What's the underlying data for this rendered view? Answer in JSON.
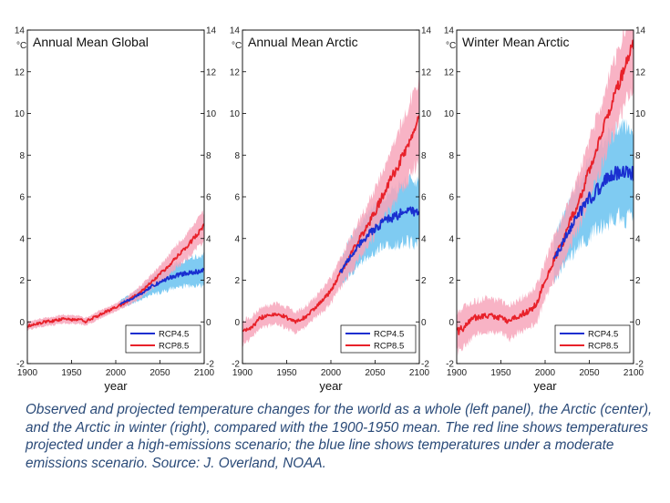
{
  "caption": "Observed and projected temperature changes for the world as a whole (left panel), the Arctic (center), and the Arctic in winter (right), compared with the 1900-1950 mean. The red line shows temperatures projected under a high-emissions scenario; the blue line shows temperatures under a moderate emissions scenario. Source: J. Overland, NOAA.",
  "colors": {
    "rcp85_line": "#e8212a",
    "rcp85_band": "#f7a6bb",
    "rcp45_line": "#1a2fd0",
    "rcp45_band": "#7fcbf2"
  },
  "chart_data": [
    {
      "type": "line",
      "title": "Annual Mean Global",
      "unit_label": "°C",
      "xlabel": "year",
      "xlim": [
        1900,
        2100
      ],
      "ylim": [
        -2,
        14
      ],
      "x_ticks": [
        "1900",
        "1950",
        "2000",
        "2050",
        "2100"
      ],
      "y_ticks": [
        "-2",
        "0",
        "2",
        "4",
        "6",
        "8",
        "10",
        "12",
        "14"
      ],
      "legend": {
        "position": "bottom-right",
        "entries": [
          "RCP4.5",
          "RCP8.5"
        ]
      },
      "series": [
        {
          "name": "RCP8.5",
          "x": [
            1900,
            1910,
            1920,
            1930,
            1940,
            1950,
            1960,
            1965,
            1970,
            1980,
            1990,
            2000,
            2010,
            2020,
            2030,
            2040,
            2050,
            2060,
            2070,
            2080,
            2090,
            2100
          ],
          "y": [
            -0.2,
            -0.1,
            0.0,
            0.05,
            0.15,
            0.1,
            0.1,
            0.0,
            0.1,
            0.3,
            0.5,
            0.7,
            0.9,
            1.2,
            1.5,
            1.9,
            2.3,
            2.7,
            3.2,
            3.6,
            4.1,
            4.6
          ],
          "band_halfwidth": [
            0.2,
            0.2,
            0.2,
            0.2,
            0.2,
            0.2,
            0.2,
            0.2,
            0.2,
            0.2,
            0.2,
            0.2,
            0.2,
            0.25,
            0.3,
            0.35,
            0.4,
            0.5,
            0.55,
            0.6,
            0.65,
            0.7
          ]
        },
        {
          "name": "RCP4.5",
          "x": [
            2005,
            2020,
            2030,
            2040,
            2050,
            2060,
            2070,
            2080,
            2090,
            2100
          ],
          "y": [
            0.85,
            1.15,
            1.4,
            1.7,
            1.9,
            2.1,
            2.25,
            2.35,
            2.4,
            2.5
          ],
          "band_halfwidth": [
            0.2,
            0.25,
            0.3,
            0.4,
            0.5,
            0.55,
            0.6,
            0.65,
            0.7,
            0.7
          ]
        }
      ]
    },
    {
      "type": "line",
      "title": "Annual Mean Arctic",
      "unit_label": "°C",
      "xlabel": "year",
      "xlim": [
        1900,
        2100
      ],
      "ylim": [
        -2,
        14
      ],
      "x_ticks": [
        "1900",
        "1950",
        "2000",
        "2050",
        "2100"
      ],
      "y_ticks": [
        "-2",
        "0",
        "2",
        "4",
        "6",
        "8",
        "10",
        "12",
        "14"
      ],
      "legend": {
        "position": "bottom-right",
        "entries": [
          "RCP4.5",
          "RCP8.5"
        ]
      },
      "series": [
        {
          "name": "RCP8.5",
          "x": [
            1900,
            1910,
            1920,
            1930,
            1940,
            1950,
            1960,
            1970,
            1980,
            1990,
            2000,
            2010,
            2020,
            2030,
            2040,
            2050,
            2060,
            2070,
            2080,
            2090,
            2100
          ],
          "y": [
            -0.5,
            -0.3,
            0.2,
            0.3,
            0.4,
            0.2,
            0.0,
            0.2,
            0.6,
            1.0,
            1.5,
            2.3,
            3.0,
            3.8,
            4.5,
            5.3,
            6.2,
            7.0,
            7.9,
            8.8,
            9.8
          ],
          "band_halfwidth": [
            0.6,
            0.5,
            0.5,
            0.5,
            0.5,
            0.5,
            0.5,
            0.5,
            0.5,
            0.55,
            0.6,
            0.7,
            0.8,
            0.9,
            1.0,
            1.1,
            1.2,
            1.4,
            1.6,
            1.8,
            2.0
          ]
        },
        {
          "name": "RCP4.5",
          "x": [
            2010,
            2020,
            2030,
            2040,
            2050,
            2060,
            2070,
            2080,
            2090,
            2100
          ],
          "y": [
            2.3,
            3.0,
            3.6,
            4.1,
            4.5,
            4.8,
            5.0,
            5.2,
            5.3,
            5.3
          ],
          "band_halfwidth": [
            0.6,
            0.8,
            0.9,
            1.0,
            1.1,
            1.2,
            1.3,
            1.4,
            1.5,
            1.5
          ]
        }
      ]
    },
    {
      "type": "line",
      "title": "Winter Mean Arctic",
      "unit_label": "°C",
      "xlabel": "year",
      "xlim": [
        1900,
        2100
      ],
      "ylim": [
        -2,
        14
      ],
      "x_ticks": [
        "1900",
        "1950",
        "2000",
        "2050",
        "2100"
      ],
      "y_ticks": [
        "-2",
        "0",
        "2",
        "4",
        "6",
        "8",
        "10",
        "12",
        "14"
      ],
      "legend": {
        "position": "bottom-right",
        "entries": [
          "RCP4.5",
          "RCP8.5"
        ]
      },
      "series": [
        {
          "name": "RCP8.5",
          "x": [
            1900,
            1910,
            1920,
            1930,
            1940,
            1950,
            1960,
            1970,
            1980,
            1990,
            2000,
            2010,
            2020,
            2030,
            2040,
            2050,
            2060,
            2070,
            2080,
            2090,
            2100
          ],
          "y": [
            -0.5,
            -0.2,
            0.2,
            0.3,
            0.3,
            0.2,
            0.0,
            0.3,
            0.5,
            0.8,
            2.0,
            3.0,
            3.8,
            5.0,
            6.0,
            7.3,
            8.5,
            9.8,
            11.0,
            12.2,
            13.3
          ],
          "band_halfwidth": [
            1.0,
            0.9,
            0.8,
            0.8,
            0.8,
            0.8,
            0.8,
            0.8,
            0.8,
            0.85,
            0.9,
            1.0,
            1.1,
            1.2,
            1.3,
            1.4,
            1.5,
            1.6,
            1.7,
            1.8,
            1.9
          ]
        },
        {
          "name": "RCP4.5",
          "x": [
            2010,
            2020,
            2030,
            2040,
            2050,
            2060,
            2070,
            2080,
            2090,
            2100
          ],
          "y": [
            3.0,
            3.8,
            4.6,
            5.3,
            5.9,
            6.4,
            6.8,
            7.1,
            7.2,
            7.1
          ],
          "band_halfwidth": [
            1.0,
            1.2,
            1.4,
            1.6,
            1.8,
            1.9,
            2.0,
            2.1,
            2.2,
            2.2
          ]
        }
      ]
    }
  ]
}
